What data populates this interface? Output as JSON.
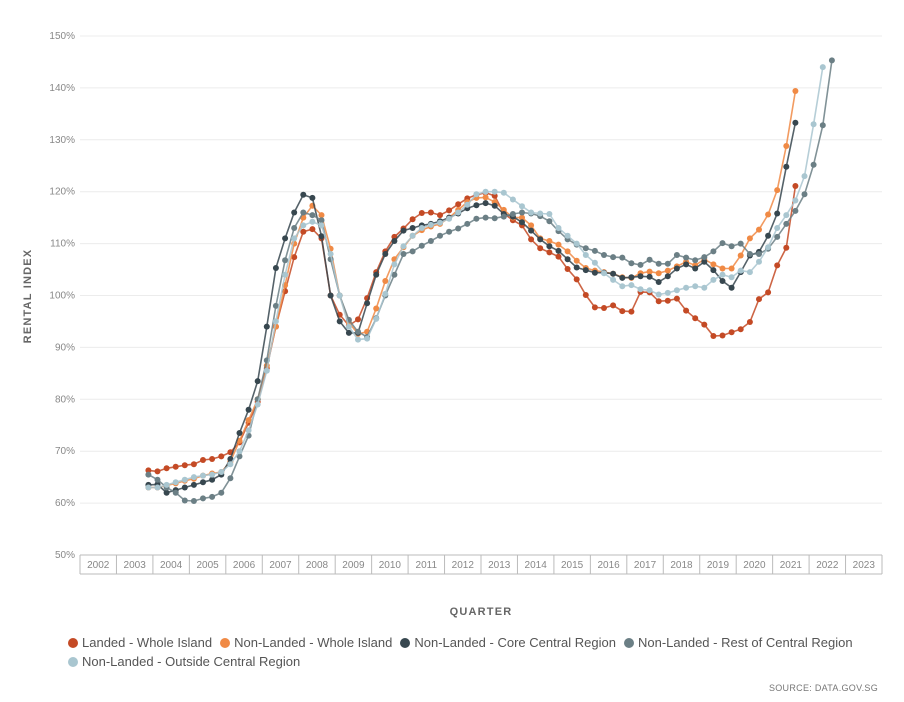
{
  "chart_data": {
    "type": "line",
    "xlabel": "QUARTER",
    "ylabel": "RENTAL INDEX",
    "ylim": [
      50,
      150
    ],
    "yticks": [
      "50%",
      "60%",
      "70%",
      "80%",
      "90%",
      "100%",
      "110%",
      "120%",
      "130%",
      "140%",
      "150%"
    ],
    "years": [
      "2002",
      "2003",
      "2004",
      "2005",
      "2006",
      "2007",
      "2008",
      "2009",
      "2010",
      "2011",
      "2012",
      "2013",
      "2014",
      "2015",
      "2016",
      "2017",
      "2018",
      "2019",
      "2020",
      "2021",
      "2022",
      "2023"
    ],
    "start_year": 2003,
    "start_quarter": 4,
    "grid": true,
    "legend_position": "bottom",
    "source": "SOURCE: DATA.GOV.SG",
    "series": [
      {
        "name": "Landed - Whole Island",
        "color": "#c44a25",
        "values": [
          66.3,
          66.1,
          66.7,
          67.0,
          67.3,
          67.5,
          68.3,
          68.5,
          69.0,
          69.8,
          71.7,
          75.5,
          79.5,
          86.0,
          94.0,
          100.8,
          107.4,
          112.3,
          112.8,
          111.0,
          100.0,
          96.3,
          94.2,
          95.4,
          99.5,
          104.5,
          108.5,
          111.3,
          112.9,
          114.7,
          115.9,
          116.0,
          115.5,
          116.4,
          117.6,
          118.7,
          119.4,
          119.8,
          119.2,
          115.8,
          114.5,
          113.5,
          110.8,
          109.1,
          108.3,
          107.5,
          105.1,
          103.1,
          100.1,
          97.7,
          97.6,
          98.1,
          97.0,
          96.9,
          100.7,
          100.6,
          98.9,
          99.0,
          99.4,
          97.1,
          95.6,
          94.4,
          92.2,
          92.3,
          92.9,
          93.5,
          94.9,
          99.3,
          100.6,
          105.8,
          109.2,
          121.1
        ]
      },
      {
        "name": "Non-Landed - Whole Island",
        "color": "#f08a45",
        "values": [
          63.0,
          63.0,
          63.4,
          63.8,
          64.3,
          64.7,
          65.3,
          65.7,
          66.0,
          68.0,
          72.0,
          76.0,
          80.0,
          86.5,
          94.0,
          102.0,
          110.0,
          115.0,
          117.3,
          115.5,
          109.0,
          100.0,
          94.8,
          92.6,
          93.0,
          97.5,
          102.8,
          107.0,
          109.3,
          111.5,
          112.6,
          113.3,
          113.8,
          115.0,
          116.5,
          118.0,
          118.8,
          118.9,
          118.0,
          116.5,
          115.0,
          115.0,
          113.5,
          111.0,
          110.5,
          109.8,
          108.5,
          106.7,
          105.3,
          104.8,
          104.5,
          104.2,
          103.5,
          103.4,
          104.3,
          104.6,
          104.3,
          104.8,
          105.6,
          106.5,
          105.8,
          107.0,
          106.0,
          105.2,
          105.2,
          107.7,
          111.0,
          112.7,
          115.6,
          120.3,
          128.8,
          139.4
        ]
      },
      {
        "name": "Non-Landed - Core Central Region",
        "color": "#37474f",
        "values": [
          63.5,
          63.6,
          62.0,
          62.5,
          63.0,
          63.5,
          64.0,
          64.5,
          65.5,
          68.5,
          73.5,
          78.0,
          83.5,
          94.0,
          105.3,
          111.0,
          116.0,
          119.4,
          118.8,
          111.4,
          100.0,
          95.0,
          92.8,
          92.8,
          98.5,
          104.0,
          108.0,
          110.5,
          112.5,
          113.0,
          113.5,
          113.8,
          114.3,
          115.0,
          115.8,
          116.8,
          117.4,
          117.8,
          117.3,
          115.7,
          115.2,
          114.1,
          112.5,
          110.8,
          109.5,
          108.6,
          107.0,
          105.4,
          104.9,
          104.4,
          104.4,
          104.2,
          103.4,
          103.5,
          103.7,
          103.6,
          102.6,
          103.7,
          105.2,
          106.0,
          105.2,
          106.5,
          104.9,
          102.8,
          101.5,
          104.5,
          107.7,
          108.4,
          111.5,
          115.8,
          124.8,
          133.3
        ]
      },
      {
        "name": "Non-Landed - Rest of Central Region",
        "color": "#6b7f85",
        "values": [
          65.5,
          64.5,
          63.0,
          62.0,
          60.5,
          60.4,
          60.9,
          61.2,
          62.0,
          64.8,
          69.0,
          73.0,
          80.0,
          87.5,
          98.0,
          106.8,
          113.0,
          116.0,
          115.5,
          114.5,
          107.0,
          100.0,
          95.3,
          93.0,
          92.0,
          95.6,
          100.0,
          104.0,
          108.0,
          108.5,
          109.6,
          110.5,
          111.5,
          112.3,
          112.9,
          113.8,
          114.8,
          115.0,
          114.9,
          115.2,
          115.7,
          116.0,
          115.8,
          115.3,
          114.3,
          112.4,
          110.8,
          109.8,
          109.1,
          108.6,
          107.8,
          107.4,
          107.3,
          106.2,
          105.9,
          106.9,
          106.1,
          106.1,
          107.8,
          107.3,
          106.8,
          107.4,
          108.5,
          110.1,
          109.5,
          110.0,
          108.0,
          108.0,
          109.0,
          111.3,
          113.8,
          116.3,
          119.5,
          125.2,
          132.8,
          145.3
        ]
      },
      {
        "name": "Non-Landed - Outside Central Region",
        "color": "#a9c6d0",
        "values": [
          63.0,
          63.0,
          63.5,
          64.0,
          64.5,
          65.0,
          65.3,
          65.5,
          66.0,
          67.5,
          70.0,
          74.0,
          79.0,
          85.5,
          95.0,
          104.0,
          111.0,
          113.5,
          114.2,
          113.5,
          108.0,
          100.0,
          94.0,
          91.5,
          91.7,
          95.5,
          100.3,
          106.0,
          109.5,
          111.5,
          113.0,
          113.6,
          114.0,
          114.8,
          116.0,
          117.5,
          119.5,
          120.0,
          120.0,
          119.8,
          118.5,
          117.2,
          116.0,
          115.8,
          115.7,
          113.0,
          111.5,
          110.0,
          107.8,
          106.3,
          104.3,
          103.0,
          101.8,
          102.0,
          101.2,
          101.0,
          100.2,
          100.5,
          101.0,
          101.5,
          101.8,
          101.5,
          103.0,
          104.0,
          103.5,
          104.8,
          104.5,
          106.5,
          109.3,
          113.0,
          115.5,
          118.3,
          123.0,
          133.0,
          144.0
        ]
      }
    ]
  }
}
